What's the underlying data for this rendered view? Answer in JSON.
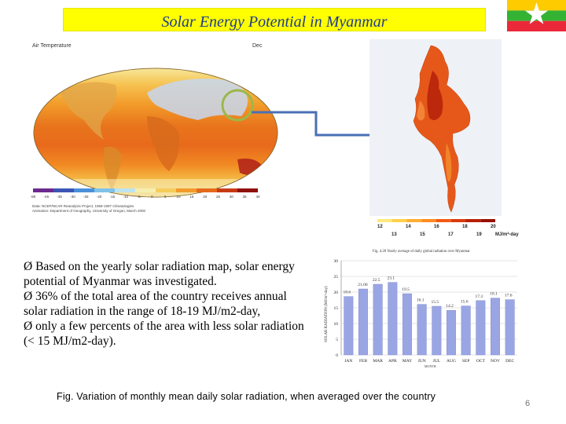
{
  "slide": {
    "title": "Solar Energy Potential in Myanmar",
    "page_number": "6",
    "caption": "Fig. Variation of monthly mean daily solar radiation, when averaged over the country"
  },
  "world_map": {
    "title": "Air Temperature",
    "month": "Dec",
    "scale_ticks": [
      "-80",
      "-45",
      "-35",
      "-30",
      "-25",
      "-20",
      "-15",
      "-10",
      "-5",
      "0",
      "5",
      "10",
      "15",
      "20",
      "25",
      "30",
      "35",
      "40"
    ],
    "credit_line1": "Data: NCEP/NCAR Reanalysis Project, 1959-1997 Climatologies",
    "credit_line2": "Animation: Department of Geography, University of Oregon, March 2000"
  },
  "myanmar_legend": {
    "top_values": [
      "12",
      "14",
      "16",
      "18",
      "20"
    ],
    "bottom_values": [
      "13",
      "15",
      "17",
      "19"
    ],
    "unit": "MJ/m²-day",
    "colors": [
      "#ffe97a",
      "#ffd04a",
      "#ffae32",
      "#ff8a1e",
      "#f25a14",
      "#d93a0c",
      "#b81f06",
      "#961000"
    ]
  },
  "bullets": [
    "Ø Based on the yearly solar radiation map, solar energy potential of Myanmar was investigated.",
    "Ø 36% of the total area of the country receives annual solar radiation in the range of 18-19 MJ/m2-day,",
    "Ø only a few percents of the area with less solar radiation (< 15 MJ/m2-day)."
  ],
  "chart_data": {
    "type": "bar",
    "title": "Fig. 4.20 Yearly average of daily global radiation over Myanmar",
    "ylabel": "SOLAR RADIATION (MJ/m²-day)",
    "xlabel": "MONTH",
    "categories": [
      "JAN",
      "FEB",
      "MAR",
      "APR",
      "MAY",
      "JUN",
      "JUL",
      "AUG",
      "SEP",
      "OCT",
      "NOV",
      "DEC"
    ],
    "values": [
      18.6,
      21.0,
      22.5,
      23.1,
      19.5,
      16.1,
      15.5,
      14.2,
      15.6,
      17.3,
      18.1,
      17.6
    ],
    "value_labels": [
      "18.6",
      "21.00",
      "22.5",
      "23.1",
      "19.5",
      "16.1",
      "15.5",
      "14.2",
      "15.6",
      "17.3",
      "18.1",
      "17.6"
    ],
    "y_ticks": [
      "0",
      "5",
      "10",
      "15",
      "20",
      "25",
      "30"
    ],
    "ylim": [
      0,
      30
    ],
    "bar_color": "#9aa6e4"
  },
  "colors": {
    "title_bg": "#ffff00",
    "title_text": "#1f3b8c",
    "connector": "#4a6fb5",
    "circle": "#9ab84a"
  }
}
